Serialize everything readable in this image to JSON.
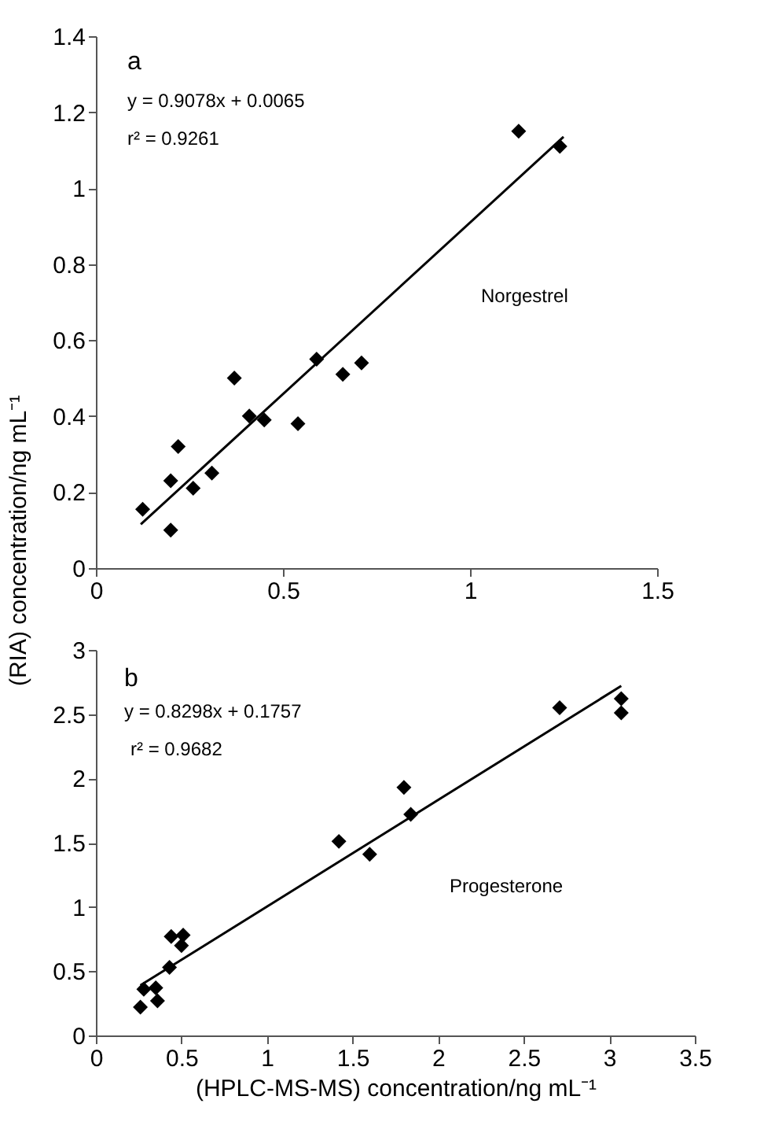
{
  "chart_data": [
    {
      "type": "scatter",
      "ylabel": "(RIA) concentration/ng mL⁻¹",
      "grid": false,
      "annotations": [
        "a",
        "y = 0.9078x + 0.0065",
        "r² = 0.9261",
        "Norgestrel"
      ],
      "xlim": [
        0,
        1.5
      ],
      "xticks": [
        0,
        0.5,
        1,
        1.5
      ],
      "ylim": [
        0,
        1.4
      ],
      "yticks": [
        0,
        0.2,
        0.4,
        0.6,
        0.8,
        1,
        1.2,
        1.4
      ],
      "series": [
        {
          "marker": "diamond",
          "color": "#000000",
          "x": [
            0.125,
            0.2,
            0.2,
            0.22,
            0.26,
            0.31,
            0.37,
            0.41,
            0.45,
            0.54,
            0.59,
            0.66,
            0.71,
            1.13,
            1.24
          ],
          "values": [
            0.155,
            0.1,
            0.23,
            0.32,
            0.21,
            0.25,
            0.5,
            0.4,
            0.39,
            0.38,
            0.55,
            0.51,
            0.54,
            1.15,
            1.11
          ]
        },
        {
          "type": "line",
          "marker": "none",
          "line_style": "solid",
          "color": "#000000",
          "x": [
            0.12,
            1.25
          ],
          "values": [
            0.115,
            1.135
          ]
        }
      ]
    },
    {
      "type": "scatter",
      "xlabel": "(HPLC-MS-MS) concentration/ng mL⁻¹",
      "grid": false,
      "annotations": [
        "b",
        "y = 0.8298x + 0.1757",
        "r² = 0.9682",
        "Progesterone"
      ],
      "xlim": [
        0,
        3.5
      ],
      "xticks": [
        0,
        0.5,
        1,
        1.5,
        2,
        2.5,
        3,
        3.5
      ],
      "ylim": [
        0,
        3
      ],
      "yticks": [
        0,
        0.5,
        1,
        1.5,
        2,
        2.5,
        3
      ],
      "series": [
        {
          "marker": "diamond",
          "color": "#000000",
          "x": [
            0.26,
            0.28,
            0.35,
            0.36,
            0.43,
            0.44,
            0.51,
            0.5,
            1.42,
            1.6,
            1.8,
            1.84,
            2.71,
            3.07,
            3.07
          ],
          "values": [
            0.22,
            0.36,
            0.37,
            0.27,
            0.53,
            0.77,
            0.78,
            0.7,
            1.51,
            1.41,
            1.93,
            1.72,
            2.55,
            2.62,
            2.51
          ]
        },
        {
          "type": "line",
          "marker": "none",
          "line_style": "solid",
          "color": "#000000",
          "x": [
            0.26,
            3.07
          ],
          "values": [
            0.39,
            2.72
          ]
        }
      ]
    }
  ]
}
